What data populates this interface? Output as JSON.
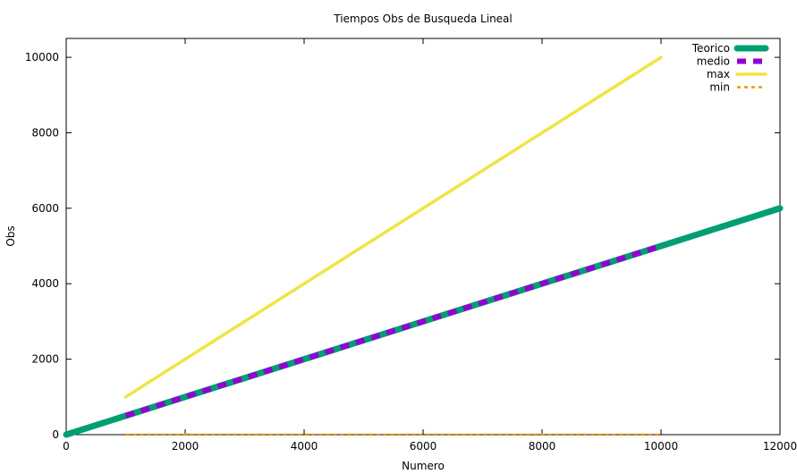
{
  "chart_data": {
    "type": "line",
    "title": "Tiempos Obs de Busqueda Lineal",
    "xlabel": "Numero",
    "ylabel": "Obs",
    "xlim": [
      0,
      12000
    ],
    "ylim": [
      0,
      10500
    ],
    "xticks": [
      0,
      2000,
      4000,
      6000,
      8000,
      10000,
      12000
    ],
    "yticks": [
      0,
      2000,
      4000,
      6000,
      8000,
      10000
    ],
    "grid": false,
    "legend_position": "top-right",
    "series": [
      {
        "name": "Teorico",
        "color": "#009e73",
        "style": "solid",
        "x": [
          0,
          12000
        ],
        "y": [
          0,
          6000
        ]
      },
      {
        "name": "medio",
        "color": "#9400d3",
        "style": "dashed",
        "x": [
          1000,
          10000
        ],
        "y": [
          500,
          5000
        ]
      },
      {
        "name": "max",
        "color": "#f0e442",
        "style": "solid",
        "x": [
          1000,
          10000
        ],
        "y": [
          1000,
          10000
        ]
      },
      {
        "name": "min",
        "color": "#e69f00",
        "style": "dotted",
        "x": [
          1000,
          10000
        ],
        "y": [
          1,
          1
        ]
      }
    ]
  }
}
